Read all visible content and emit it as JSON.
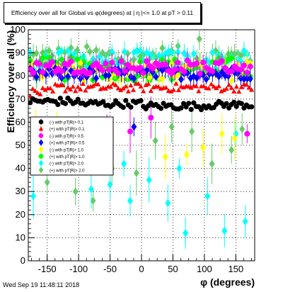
{
  "title": "Efficiency over all for Global vs φ(degrees) at | η |<= 1.0 at pT > 0.11",
  "date_stamp": "Wed Sep 19 11:48:11 2018",
  "chart_data": {
    "type": "scatter",
    "xlabel": "φ (degrees)",
    "ylabel": "Efficiency over all (%)",
    "xlim": [
      -180,
      180
    ],
    "ylim": [
      0,
      100
    ],
    "xticks": [
      -150,
      -100,
      -50,
      0,
      50,
      100,
      150
    ],
    "yticks": [
      0,
      10,
      20,
      30,
      40,
      50,
      60,
      70,
      80,
      90,
      100
    ],
    "grid": true,
    "legend_placement": "middle-left",
    "series": [
      {
        "name": "(-) with pT|R|> 0.1",
        "color": "#000000",
        "marker": "circle",
        "band": "flat",
        "base": 68,
        "amp": 1.6,
        "phases": [
          [
            -180,
            -100,
            69
          ],
          [
            -100,
            0,
            68
          ],
          [
            0,
            100,
            67
          ],
          [
            100,
            180,
            67.5
          ]
        ]
      },
      {
        "name": "(+) with pT|R|> 0.1",
        "color": "#ff0000",
        "marker": "triangle",
        "band": "flat",
        "base": 74,
        "amp": 1.8,
        "phases": [
          [
            -180,
            -140,
            73
          ],
          [
            -140,
            180,
            75
          ]
        ]
      },
      {
        "name": "(-) with pT|R|> 0.5",
        "color": "#ff00ff",
        "marker": "circle",
        "band": "scatter",
        "base": 84,
        "amp": 3,
        "outliers": [
          [
            -18,
            56
          ],
          [
            -55,
            58
          ],
          [
            15,
            62
          ],
          [
            168,
            55
          ]
        ]
      },
      {
        "name": "(+) with pT|R|> 0.5",
        "color": "#0000ff",
        "marker": "diamond",
        "band": "scatter",
        "base": 81,
        "amp": 2.5,
        "outliers": [
          [
            -12,
            58
          ]
        ]
      },
      {
        "name": "(-) with pT|R|> 1.0",
        "color": "#ffff00",
        "marker": "diamond",
        "band": "scatter",
        "base": 82,
        "amp": 4,
        "outliers": [
          [
            38,
            45
          ],
          [
            72,
            46
          ],
          [
            98,
            49
          ],
          [
            128,
            55
          ],
          [
            148,
            53
          ],
          [
            -135,
            57
          ],
          [
            -48,
            55
          ],
          [
            -168,
            60
          ]
        ]
      },
      {
        "name": "(+) with pT|R|> 1.0",
        "color": "#00ff00",
        "marker": "circle",
        "band": "scatter",
        "base": 83,
        "amp": 5,
        "outliers": []
      },
      {
        "name": "(-) with pT|R|> 2.0",
        "color": "#00ffff",
        "marker": "diamond",
        "band": "scatter",
        "base": 87,
        "amp": 4,
        "outliers": [
          [
            -172,
            28
          ],
          [
            -50,
            33
          ],
          [
            -18,
            26
          ],
          [
            12,
            35
          ],
          [
            42,
            25
          ],
          [
            70,
            12
          ],
          [
            105,
            28
          ],
          [
            132,
            13
          ],
          [
            165,
            17
          ],
          [
            -112,
            45
          ],
          [
            -80,
            31
          ],
          [
            -155,
            48
          ],
          [
            -28,
            42
          ],
          [
            60,
            40
          ],
          [
            150,
            55
          ]
        ]
      },
      {
        "name": "(+) with pT|R|> 2.0",
        "color": "#66cc66",
        "marker": "diamond",
        "band": "scatter",
        "base": 88,
        "amp": 5,
        "outliers": [
          [
            -150,
            34
          ],
          [
            -105,
            30
          ],
          [
            -77,
            26
          ],
          [
            -47,
            40
          ],
          [
            -8,
            38
          ],
          [
            22,
            52
          ],
          [
            48,
            58
          ],
          [
            80,
            56
          ],
          [
            112,
            42
          ],
          [
            143,
            48
          ],
          [
            160,
            57
          ],
          [
            -130,
            50
          ],
          [
            92,
            96
          ]
        ]
      }
    ]
  }
}
